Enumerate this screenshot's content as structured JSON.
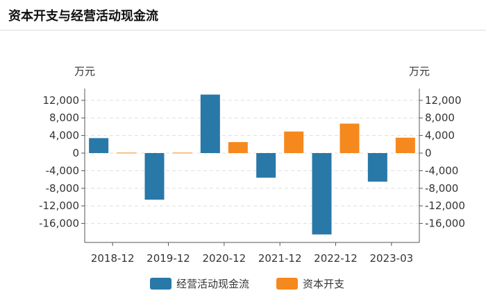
{
  "header": {
    "title": "资本开支与经营活动现金流"
  },
  "chart_data": {
    "type": "bar",
    "title": "",
    "categories": [
      "2018-12",
      "2019-12",
      "2020-12",
      "2021-12",
      "2022-12",
      "2023-03"
    ],
    "series": [
      {
        "name": "经营活动现金流",
        "color": "#2878a8",
        "values": [
          3400,
          -10600,
          13300,
          -5600,
          -18500,
          -6500
        ]
      },
      {
        "name": "资本开支",
        "color": "#f5891e",
        "values": [
          100,
          100,
          2500,
          4900,
          6700,
          3500
        ]
      }
    ],
    "y_left": {
      "unit": "万元",
      "ticks": [
        12000,
        8000,
        4000,
        0,
        -4000,
        -8000,
        -12000,
        -16000
      ],
      "tick_labels": [
        "12,000",
        "8,000",
        "4,000",
        "0",
        "-4,000",
        "-8,000",
        "-12,000",
        "-16,000"
      ],
      "range": [
        -20000,
        15000
      ]
    },
    "y_right": {
      "unit": "万元",
      "ticks": [
        12000,
        8000,
        4000,
        0,
        -4000,
        -8000,
        -12000,
        -16000
      ],
      "tick_labels": [
        "12,000",
        "8,000",
        "4,000",
        "0",
        "-4,000",
        "-8,000",
        "-12,000",
        "-16,000"
      ],
      "range": [
        -20000,
        15000
      ]
    },
    "grid": true,
    "legend_position": "bottom"
  }
}
